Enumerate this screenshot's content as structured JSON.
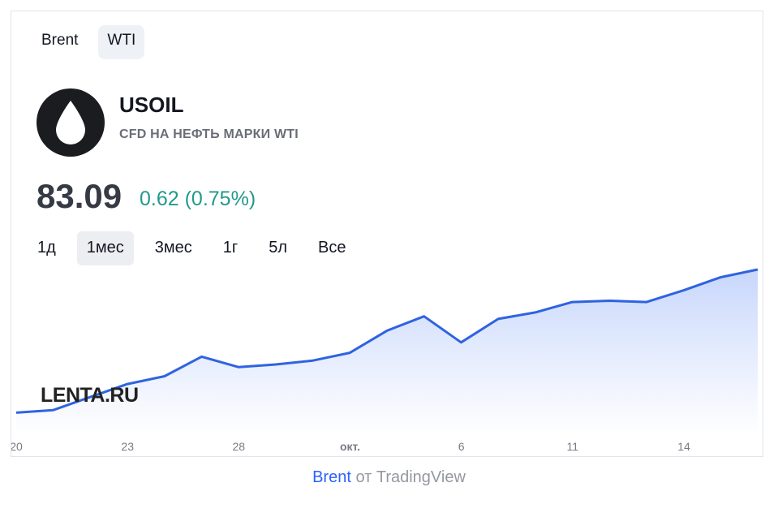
{
  "tabs": [
    {
      "label": "Brent",
      "active": false
    },
    {
      "label": "WTI",
      "active": true
    }
  ],
  "instrument": {
    "symbol": "USOIL",
    "description": "CFD НА НЕФТЬ МАРКИ WTI",
    "price": "83.09",
    "change": "0.62 (0.75%)",
    "icon": "oil-drop-icon"
  },
  "ranges": [
    {
      "label": "1д",
      "active": false
    },
    {
      "label": "1мес",
      "active": true
    },
    {
      "label": "3мес",
      "active": false
    },
    {
      "label": "1г",
      "active": false
    },
    {
      "label": "5л",
      "active": false
    },
    {
      "label": "Все",
      "active": false
    }
  ],
  "watermark": "LENTA.RU",
  "footer": {
    "link": "Brent",
    "text": " от TradingView"
  },
  "chart_data": {
    "type": "area",
    "x_ticks": [
      "20",
      "23",
      "28",
      "окт.",
      "6",
      "11",
      "14"
    ],
    "values": [
      77.1,
      77.3,
      78.3,
      79.3,
      79.9,
      81.4,
      80.6,
      80.8,
      81.1,
      81.7,
      83.4,
      84.5,
      82.5,
      84.3,
      84.8,
      85.6,
      85.7,
      85.6,
      86.5,
      87.5,
      88.1
    ],
    "ylim": [
      76,
      88.6
    ],
    "colors": {
      "line": "#2f63e0",
      "fill_top": "#c7d6fb",
      "fill_bottom": "#ffffff"
    },
    "grid": false
  }
}
